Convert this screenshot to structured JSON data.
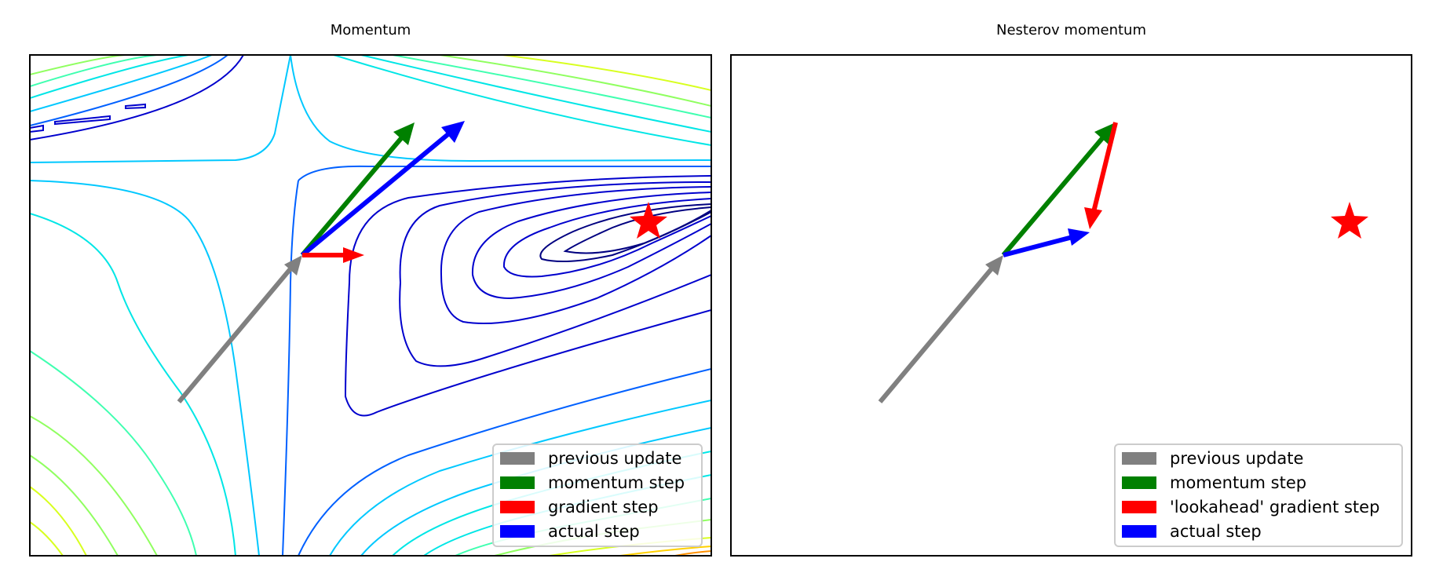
{
  "panels": [
    {
      "title": "Momentum",
      "legend": [
        {
          "label": "previous update",
          "color": "#808080"
        },
        {
          "label": "momentum step",
          "color": "#008000"
        },
        {
          "label": "gradient step",
          "color": "#ff0000"
        },
        {
          "label": "actual step",
          "color": "#0000ff"
        }
      ]
    },
    {
      "title": "Nesterov momentum",
      "legend": [
        {
          "label": "previous update",
          "color": "#808080"
        },
        {
          "label": "momentum step",
          "color": "#008000"
        },
        {
          "label": "'lookahead' gradient step",
          "color": "#ff0000"
        },
        {
          "label": "actual step",
          "color": "#0000ff"
        }
      ]
    }
  ],
  "colors": {
    "previous_update": "#808080",
    "momentum_step": "#008000",
    "gradient_step": "#ff0000",
    "actual_step": "#0000ff",
    "optimum_star": "#ff0000",
    "contour_palette": [
      "#000080",
      "#0000cd",
      "#0060ff",
      "#00c8ff",
      "#00e6e6",
      "#40ffb0",
      "#90ff60",
      "#d8ff20",
      "#ffd000",
      "#ff9000"
    ]
  }
}
